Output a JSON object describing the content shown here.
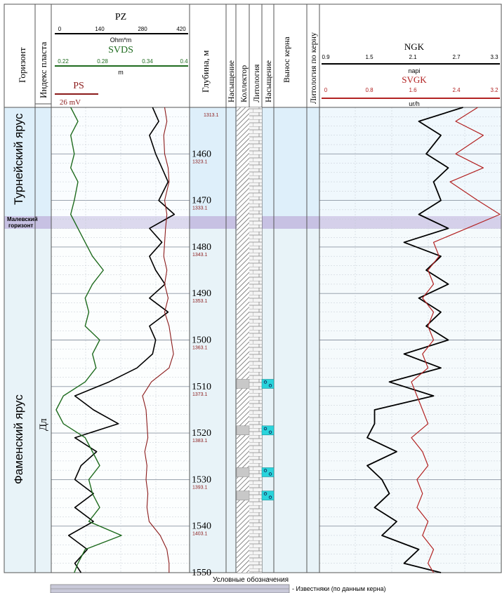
{
  "columns": {
    "horizon": "Горизонт",
    "layer_index": "Индекс пласта",
    "depth": "Глубина, м",
    "saturation": "Насыщение",
    "collector": "Коллектор",
    "lithology": "Литология",
    "saturation2": "Насыщение",
    "core_yield": "Вынос керна",
    "core_lithology": "Литология по керну"
  },
  "zones": {
    "tournaisian": "Турнейский ярус",
    "malevsky_1": "Малевский",
    "malevsky_2": "горизонт",
    "famennian": "Фаменский ярус",
    "layer_dl": "Дл"
  },
  "curves_header": {
    "pz": {
      "name": "PZ",
      "unit": "Ohm*m",
      "ticks": [
        "0",
        "140",
        "280",
        "420"
      ],
      "color": "#000000"
    },
    "svds": {
      "name": "SVDS",
      "unit": "m",
      "ticks": [
        "0.22",
        "0.28",
        "0.34",
        "0.4"
      ],
      "color": "#1e6b1e"
    },
    "ps": {
      "name": "PS",
      "unit": "26 mV",
      "color": "#8b1a1a"
    },
    "ngk": {
      "name": "NGK",
      "unit": "napi",
      "ticks": [
        "0.9",
        "1.5",
        "2.1",
        "2.7",
        "3.3"
      ],
      "color": "#000000"
    },
    "svgk": {
      "name": "SVGK",
      "unit": "ur/h",
      "ticks": [
        "0",
        "0.8",
        "1.6",
        "2.4",
        "3.2"
      ],
      "color": "#b22222"
    }
  },
  "legend": {
    "title": "Условные обозначения",
    "item": "- Известняки (по данным керна)"
  },
  "colors": {
    "tournaisian_fill": "#deeffa",
    "malevsky_fill": "#c7c1e3",
    "famennian_fill": "#e8f3f8",
    "core_cyan": "#29d4dc",
    "grid": "#9aa4b0"
  },
  "chart_data": {
    "type": "line",
    "depth_range": [
      1450,
      1550
    ],
    "depth_ticks": [
      {
        "md": 1460,
        "tvd": "1323.1"
      },
      {
        "md": 1470,
        "tvd": "1333.1"
      },
      {
        "md": 1480,
        "tvd": "1343.1"
      },
      {
        "md": 1490,
        "tvd": "1353.1"
      },
      {
        "md": 1500,
        "tvd": "1363.1"
      },
      {
        "md": 1510,
        "tvd": "1373.1"
      },
      {
        "md": 1520,
        "tvd": "1383.1"
      },
      {
        "md": 1530,
        "tvd": "1393.1"
      },
      {
        "md": 1540,
        "tvd": "1403.1"
      },
      {
        "md": 1550,
        "tvd": ""
      }
    ],
    "top_tvd": "1313.1",
    "zones": [
      {
        "name": "Турнейский ярус",
        "top": 1450,
        "bottom": 1478
      },
      {
        "name": "Малевский горизонт",
        "top": 1478,
        "bottom": 1481
      },
      {
        "name": "Фаменский ярус",
        "top": 1481,
        "bottom": 1550
      }
    ],
    "core_intervals": [
      1509.5,
      1519.5,
      1528.5,
      1533.5
    ],
    "series": [
      {
        "name": "PZ",
        "range": [
          0,
          420
        ],
        "depth": [
          1450,
          1453,
          1456,
          1460,
          1463,
          1466,
          1470,
          1473,
          1476,
          1479,
          1482,
          1485,
          1488,
          1491,
          1494,
          1497,
          1500,
          1503,
          1506,
          1509,
          1512,
          1515,
          1518,
          1521,
          1524,
          1527,
          1530,
          1533,
          1536,
          1539,
          1542,
          1545,
          1548,
          1550
        ],
        "values": [
          310,
          330,
          300,
          320,
          340,
          360,
          330,
          380,
          300,
          340,
          300,
          320,
          350,
          300,
          360,
          300,
          320,
          310,
          260,
          170,
          60,
          120,
          200,
          60,
          130,
          80,
          60,
          120,
          60,
          120,
          40,
          100,
          60,
          80
        ]
      },
      {
        "name": "SVDS",
        "range": [
          0.22,
          0.4
        ],
        "depth": [
          1450,
          1453,
          1456,
          1460,
          1463,
          1466,
          1470,
          1473,
          1476,
          1479,
          1482,
          1485,
          1488,
          1491,
          1494,
          1497,
          1500,
          1503,
          1506,
          1509,
          1512,
          1515,
          1518,
          1521,
          1524,
          1527,
          1530,
          1533,
          1536,
          1539,
          1542,
          1545,
          1548,
          1550
        ],
        "values": [
          0.24,
          0.25,
          0.24,
          0.245,
          0.24,
          0.25,
          0.245,
          0.24,
          0.25,
          0.26,
          0.27,
          0.285,
          0.27,
          0.26,
          0.265,
          0.26,
          0.28,
          0.27,
          0.275,
          0.26,
          0.23,
          0.22,
          0.23,
          0.26,
          0.27,
          0.28,
          0.265,
          0.27,
          0.28,
          0.265,
          0.31,
          0.26,
          0.25,
          0.245
        ]
      },
      {
        "name": "PS",
        "range": [
          0,
          200
        ],
        "depth": [
          1450,
          1453,
          1456,
          1460,
          1463,
          1466,
          1470,
          1473,
          1476,
          1479,
          1482,
          1485,
          1488,
          1491,
          1494,
          1497,
          1500,
          1503,
          1506,
          1509,
          1512,
          1515,
          1518,
          1521,
          1524,
          1527,
          1530,
          1533,
          1536,
          1539,
          1542,
          1545,
          1548,
          1550
        ],
        "values": [
          150,
          155,
          148,
          150,
          158,
          160,
          150,
          155,
          152,
          150,
          148,
          155,
          150,
          158,
          150,
          160,
          165,
          170,
          160,
          120,
          100,
          108,
          110,
          112,
          105,
          110,
          108,
          112,
          110,
          115,
          140,
          155,
          160,
          160
        ]
      },
      {
        "name": "NGK",
        "range": [
          0.9,
          3.3
        ],
        "depth": [
          1450,
          1453,
          1456,
          1460,
          1463,
          1466,
          1470,
          1473,
          1476,
          1479,
          1482,
          1485,
          1488,
          1491,
          1494,
          1497,
          1500,
          1503,
          1506,
          1509,
          1512,
          1515,
          1518,
          1521,
          1524,
          1527,
          1530,
          1533,
          1536,
          1539,
          1542,
          1545,
          1548,
          1550
        ],
        "values": [
          2.8,
          2.2,
          2.5,
          2.3,
          2.6,
          2.4,
          2.5,
          2.2,
          2.6,
          2.0,
          2.5,
          2.3,
          2.6,
          2.2,
          2.5,
          2.3,
          2.6,
          2.0,
          2.5,
          1.8,
          2.4,
          1.6,
          1.6,
          1.5,
          1.9,
          1.5,
          1.7,
          1.8,
          1.6,
          1.9,
          1.7,
          2.2,
          2.0,
          2.5
        ]
      },
      {
        "name": "SVGK",
        "range": [
          0,
          3.2
        ],
        "depth": [
          1450,
          1453,
          1456,
          1460,
          1463,
          1466,
          1470,
          1473,
          1476,
          1479,
          1482,
          1485,
          1488,
          1491,
          1494,
          1497,
          1500,
          1503,
          1506,
          1509,
          1512,
          1515,
          1518,
          1521,
          1524,
          1527,
          1530,
          1533,
          1536,
          1539,
          1542,
          1545,
          1548,
          1550
        ],
        "values": [
          2.8,
          2.4,
          2.9,
          2.4,
          2.9,
          2.3,
          2.8,
          3.2,
          2.6,
          2.0,
          2.1,
          1.9,
          2.0,
          1.8,
          2.0,
          1.9,
          2.0,
          1.8,
          1.9,
          1.6,
          1.7,
          1.8,
          1.9,
          1.6,
          1.8,
          1.9,
          1.7,
          1.8,
          1.7,
          1.9,
          1.8,
          2.0,
          1.9,
          2.0
        ]
      }
    ]
  }
}
